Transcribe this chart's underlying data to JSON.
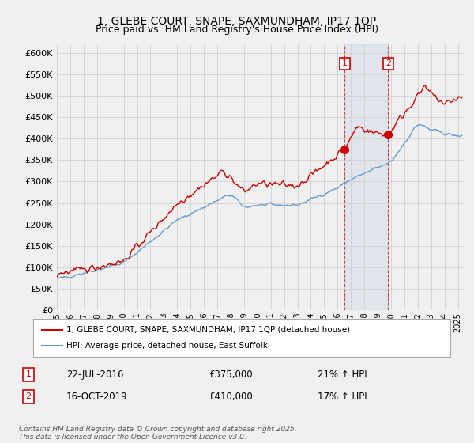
{
  "title_line1": "1, GLEBE COURT, SNAPE, SAXMUNDHAM, IP17 1QP",
  "title_line2": "Price paid vs. HM Land Registry's House Price Index (HPI)",
  "ylim": [
    0,
    620000
  ],
  "yticks": [
    0,
    50000,
    100000,
    150000,
    200000,
    250000,
    300000,
    350000,
    400000,
    450000,
    500000,
    550000,
    600000
  ],
  "legend_line1": "1, GLEBE COURT, SNAPE, SAXMUNDHAM, IP17 1QP (detached house)",
  "legend_line2": "HPI: Average price, detached house, East Suffolk",
  "annotation1": {
    "label": "1",
    "date": "22-JUL-2016",
    "price": "£375,000",
    "hpi": "21% ↑ HPI"
  },
  "annotation2": {
    "label": "2",
    "date": "16-OCT-2019",
    "price": "£410,000",
    "hpi": "17% ↑ HPI"
  },
  "footer": "Contains HM Land Registry data © Crown copyright and database right 2025.\nThis data is licensed under the Open Government Licence v3.0.",
  "red_color": "#cc0000",
  "blue_color": "#6699cc",
  "vline_color": "#cc0000",
  "background_color": "#f0f0f0",
  "grid_color": "#cccccc",
  "sale1_x": 2016.54,
  "sale1_y": 375000,
  "sale2_x": 2019.79,
  "sale2_y": 410000,
  "xlim_left": 1995,
  "xlim_right": 2025.5
}
